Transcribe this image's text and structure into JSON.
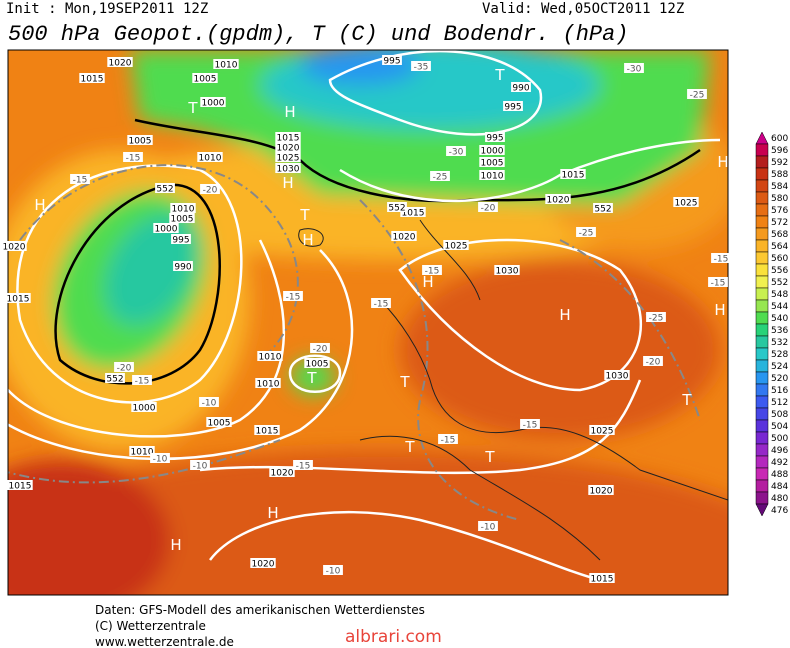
{
  "header": {
    "init": "Init : Mon,19SEP2011 12Z",
    "valid": "Valid: Wed,05OCT2011 12Z",
    "title": "500 hPa Geopot.(gpdm), T (C) und Bodendr. (hPa)"
  },
  "map": {
    "pressure_centers": [
      "H",
      "H",
      "H",
      "H",
      "H",
      "H",
      "H",
      "H",
      "H",
      "H",
      "T",
      "T",
      "T",
      "T",
      "T",
      "T",
      "T",
      "T"
    ],
    "isobar_labels": [
      "1020",
      "1015",
      "1010",
      "1005",
      "1000",
      "1005",
      "1010",
      "1015",
      "1020",
      "1025",
      "1030",
      "995",
      "990",
      "995",
      "995",
      "1000",
      "1005",
      "1010",
      "1015",
      "1020",
      "1025",
      "1015",
      "1020",
      "1025",
      "1030",
      "1020",
      "1015",
      "1010",
      "1005",
      "1000",
      "995",
      "990",
      "1010",
      "1010",
      "1005",
      "1000",
      "1005",
      "1015",
      "1010",
      "1020",
      "1015",
      "1030",
      "1025",
      "1020",
      "1015",
      "1020"
    ],
    "temperature_labels": [
      "-35",
      "-30",
      "-25",
      "-30",
      "-25",
      "-20",
      "-25",
      "-20",
      "-15",
      "-15",
      "-15",
      "-15",
      "-15",
      "-25",
      "-20",
      "-15",
      "-15",
      "-20",
      "-20",
      "-15",
      "-10",
      "-10",
      "-10",
      "-15",
      "-15",
      "-10",
      "-10",
      "-15"
    ],
    "geopotential_labels": [
      "552",
      "552",
      "552",
      "552"
    ]
  },
  "colorbar": {
    "labels": [
      600,
      596,
      592,
      588,
      584,
      580,
      576,
      572,
      568,
      564,
      560,
      556,
      552,
      548,
      544,
      540,
      536,
      532,
      528,
      524,
      520,
      516,
      512,
      508,
      504,
      500,
      496,
      492,
      488,
      484,
      480,
      476
    ]
  },
  "footer": {
    "lines": [
      "Daten: GFS-Modell des amerikanischen Wetterdienstes",
      "(C) Wetterzentrale",
      "www.wetterzentrale.de"
    ],
    "watermark": "albrari.com"
  }
}
